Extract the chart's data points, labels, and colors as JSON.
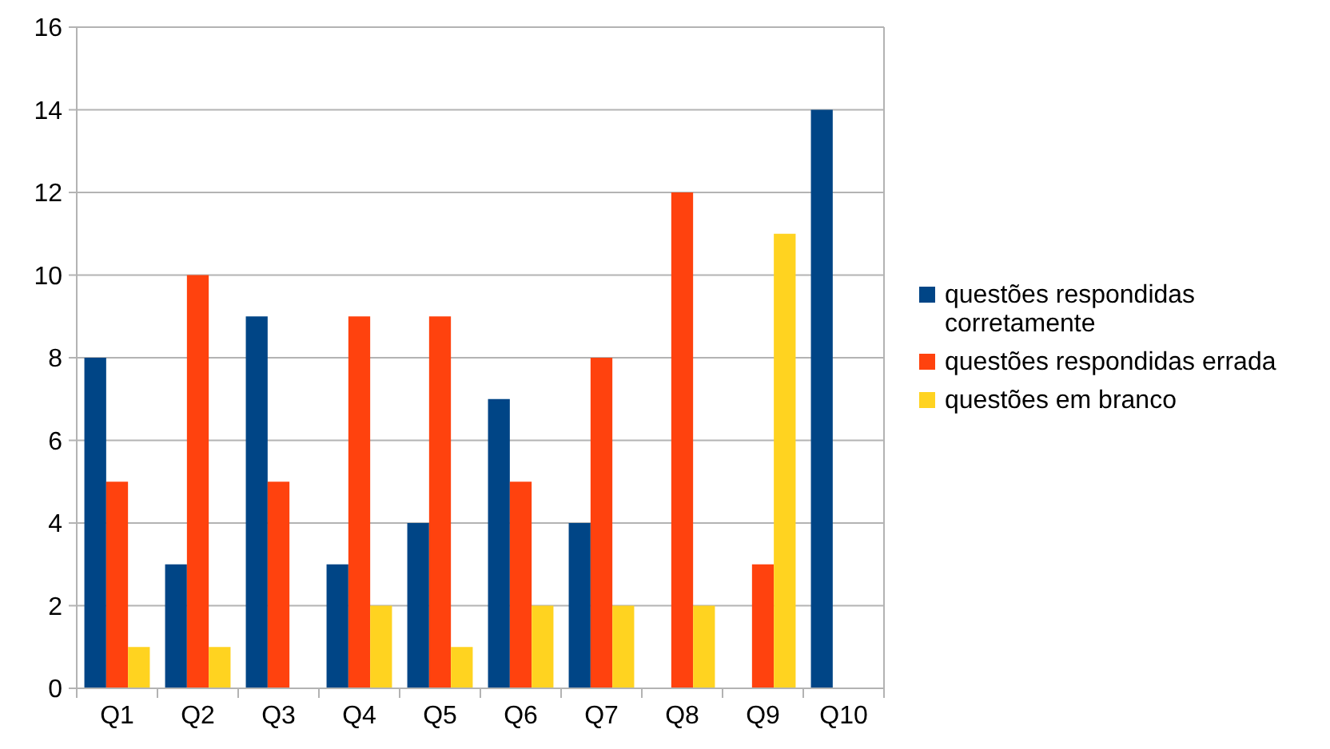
{
  "chart_data": {
    "type": "bar",
    "categories": [
      "Q1",
      "Q2",
      "Q3",
      "Q4",
      "Q5",
      "Q6",
      "Q7",
      "Q8",
      "Q9",
      "Q10"
    ],
    "series": [
      {
        "name": "questões respondidas corretamente",
        "color": "#004586",
        "values": [
          8,
          3,
          9,
          3,
          4,
          7,
          4,
          0,
          0,
          14
        ]
      },
      {
        "name": "questões respondidas errada",
        "color": "#ff420e",
        "values": [
          5,
          10,
          5,
          9,
          9,
          5,
          8,
          12,
          3,
          0
        ]
      },
      {
        "name": "questões em branco",
        "color": "#ffd320",
        "values": [
          1,
          1,
          0,
          2,
          1,
          2,
          2,
          2,
          11,
          0
        ]
      }
    ],
    "ylim": [
      0,
      16
    ],
    "yticks": [
      0,
      2,
      4,
      6,
      8,
      10,
      12,
      14,
      16
    ],
    "grid": "y",
    "legend": "right"
  }
}
